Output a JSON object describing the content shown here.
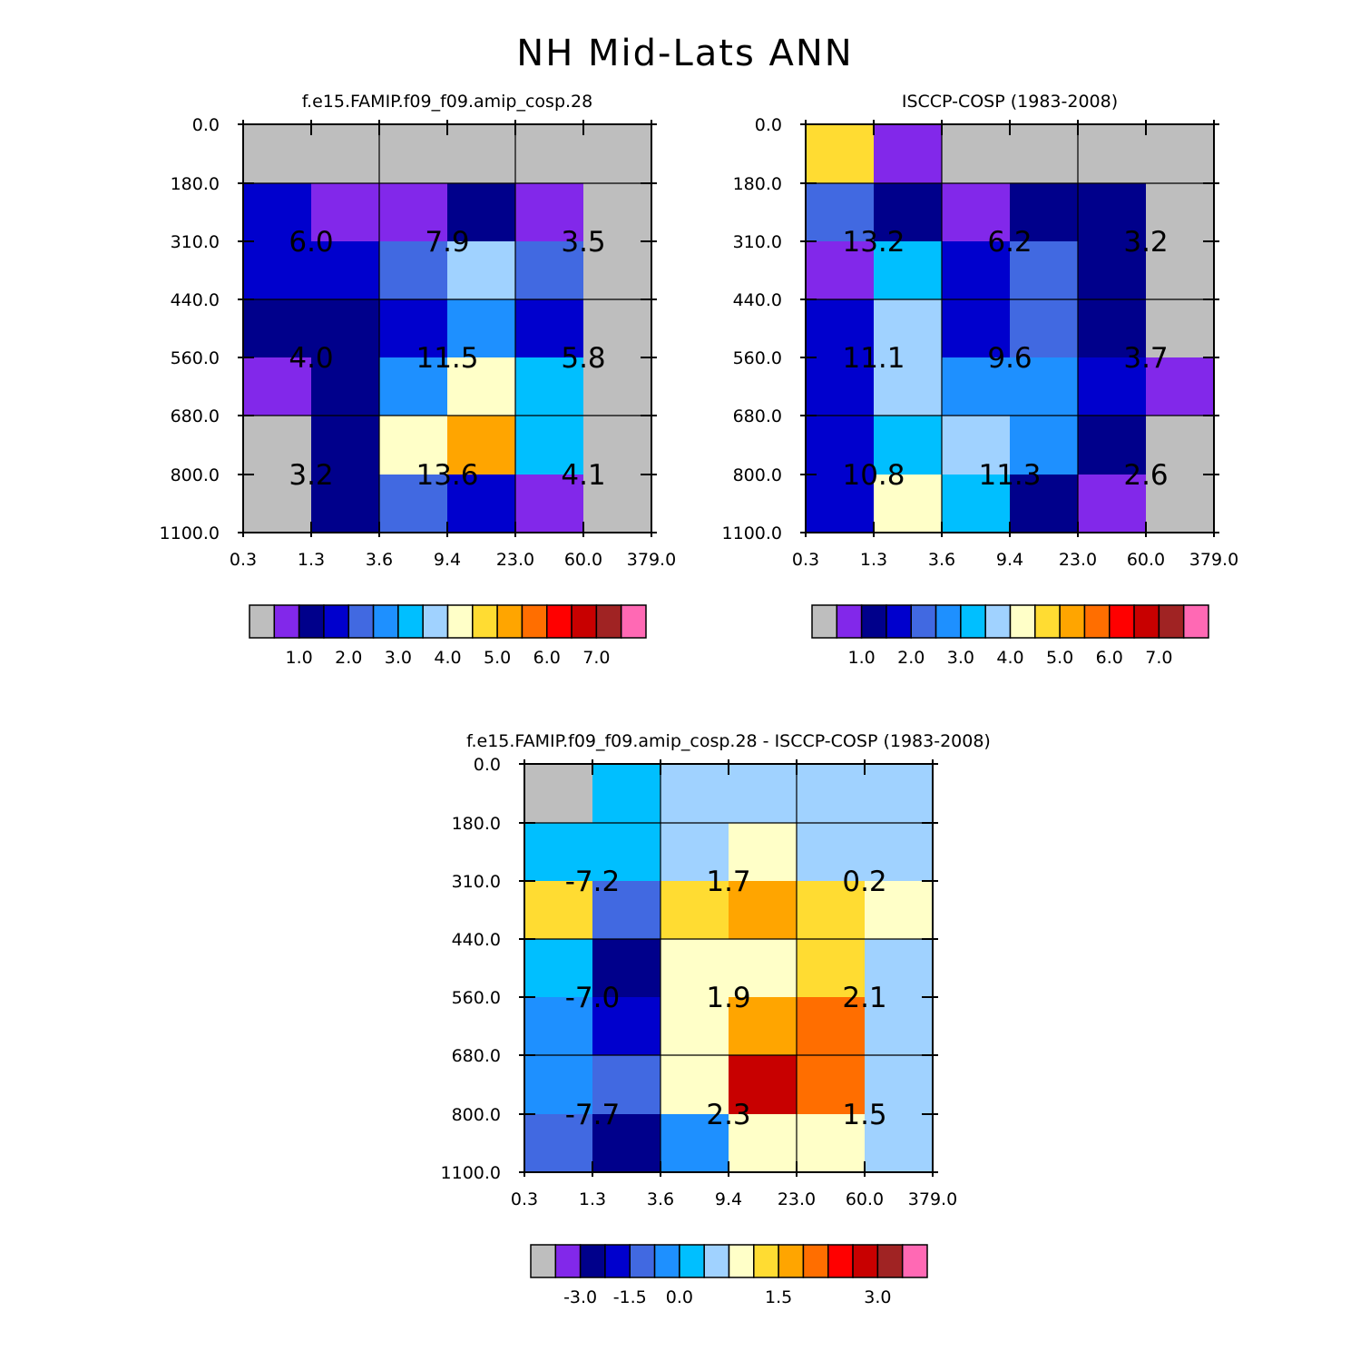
{
  "figure_title": "NH Mid-Lats ANN",
  "chart_data": [
    {
      "type": "heatmap",
      "title": "f.e15.FAMIP.f09_f09.amip_cosp.28",
      "x_ticks": [
        "0.3",
        "1.3",
        "3.6",
        "9.4",
        "23.0",
        "60.0",
        "379.0"
      ],
      "y_ticks": [
        "0.0",
        "180.0",
        "310.0",
        "440.0",
        "560.0",
        "680.0",
        "800.0",
        "1100.0"
      ],
      "cells": [
        [
          0,
          0,
          0,
          0,
          0,
          0
        ],
        [
          3,
          1,
          1,
          2,
          1,
          0
        ],
        [
          3,
          3,
          4,
          7,
          4,
          0
        ],
        [
          2,
          2,
          3,
          5,
          3,
          0
        ],
        [
          1,
          2,
          5,
          8,
          6,
          0
        ],
        [
          0,
          2,
          8,
          10,
          6,
          0
        ],
        [
          0,
          2,
          4,
          3,
          1,
          0
        ]
      ],
      "group_labels": [
        [
          "6.0",
          "7.9",
          "3.5"
        ],
        [
          "4.0",
          "11.5",
          "5.8"
        ],
        [
          "3.2",
          "13.6",
          "4.1"
        ]
      ],
      "colorbar": {
        "colors": [
          "#bebebe",
          "#8228ea",
          "#00008b",
          "#0000cd",
          "#4169e1",
          "#1e90ff",
          "#00bfff",
          "#a0d2ff",
          "#ffffc8",
          "#ffdc32",
          "#ffa500",
          "#ff6e00",
          "#ff0000",
          "#c80000",
          "#a02323",
          "#ff69b4"
        ],
        "labels": [
          "1.0",
          "2.0",
          "3.0",
          "4.0",
          "5.0",
          "6.0",
          "7.0"
        ]
      }
    },
    {
      "type": "heatmap",
      "title": "ISCCP-COSP (1983-2008)",
      "x_ticks": [
        "0.3",
        "1.3",
        "3.6",
        "9.4",
        "23.0",
        "60.0",
        "379.0"
      ],
      "y_ticks": [
        "0.0",
        "180.0",
        "310.0",
        "440.0",
        "560.0",
        "680.0",
        "800.0",
        "1100.0"
      ],
      "cells": [
        [
          9,
          1,
          0,
          0,
          0,
          0
        ],
        [
          4,
          2,
          1,
          2,
          2,
          0
        ],
        [
          1,
          6,
          3,
          4,
          2,
          0
        ],
        [
          3,
          7,
          3,
          4,
          2,
          0
        ],
        [
          3,
          7,
          5,
          5,
          3,
          1
        ],
        [
          3,
          6,
          7,
          5,
          2,
          0
        ],
        [
          3,
          8,
          6,
          2,
          1,
          0
        ]
      ],
      "group_labels": [
        [
          "13.2",
          "6.2",
          "3.2"
        ],
        [
          "11.1",
          "9.6",
          "3.7"
        ],
        [
          "10.8",
          "11.3",
          "2.6"
        ]
      ],
      "colorbar": {
        "colors": [
          "#bebebe",
          "#8228ea",
          "#00008b",
          "#0000cd",
          "#4169e1",
          "#1e90ff",
          "#00bfff",
          "#a0d2ff",
          "#ffffc8",
          "#ffdc32",
          "#ffa500",
          "#ff6e00",
          "#ff0000",
          "#c80000",
          "#a02323",
          "#ff69b4"
        ],
        "labels": [
          "1.0",
          "2.0",
          "3.0",
          "4.0",
          "5.0",
          "6.0",
          "7.0"
        ]
      }
    },
    {
      "type": "heatmap",
      "title": "f.e15.FAMIP.f09_f09.amip_cosp.28 - ISCCP-COSP (1983-2008)",
      "x_ticks": [
        "0.3",
        "1.3",
        "3.6",
        "9.4",
        "23.0",
        "60.0",
        "379.0"
      ],
      "y_ticks": [
        "0.0",
        "180.0",
        "310.0",
        "440.0",
        "560.0",
        "680.0",
        "800.0",
        "1100.0"
      ],
      "cells": [
        [
          0,
          6,
          7,
          7,
          7,
          7
        ],
        [
          6,
          6,
          7,
          8,
          7,
          7
        ],
        [
          9,
          4,
          9,
          10,
          9,
          8
        ],
        [
          6,
          2,
          8,
          8,
          9,
          7
        ],
        [
          5,
          3,
          8,
          10,
          11,
          7
        ],
        [
          5,
          4,
          8,
          13,
          11,
          7
        ],
        [
          4,
          2,
          5,
          8,
          8,
          7
        ]
      ],
      "group_labels": [
        [
          "-7.2",
          "1.7",
          "0.2"
        ],
        [
          "-7.0",
          "1.9",
          "2.1"
        ],
        [
          "-7.7",
          "2.3",
          "1.5"
        ]
      ],
      "colorbar": {
        "colors": [
          "#bebebe",
          "#8228ea",
          "#00008b",
          "#0000cd",
          "#4169e1",
          "#1e90ff",
          "#00bfff",
          "#a0d2ff",
          "#ffffc8",
          "#ffdc32",
          "#ffa500",
          "#ff6e00",
          "#ff0000",
          "#c80000",
          "#a02323",
          "#ff69b4"
        ],
        "labels": [
          "-3.0",
          "-1.5",
          "0.0",
          "1.5",
          "3.0"
        ]
      }
    }
  ]
}
